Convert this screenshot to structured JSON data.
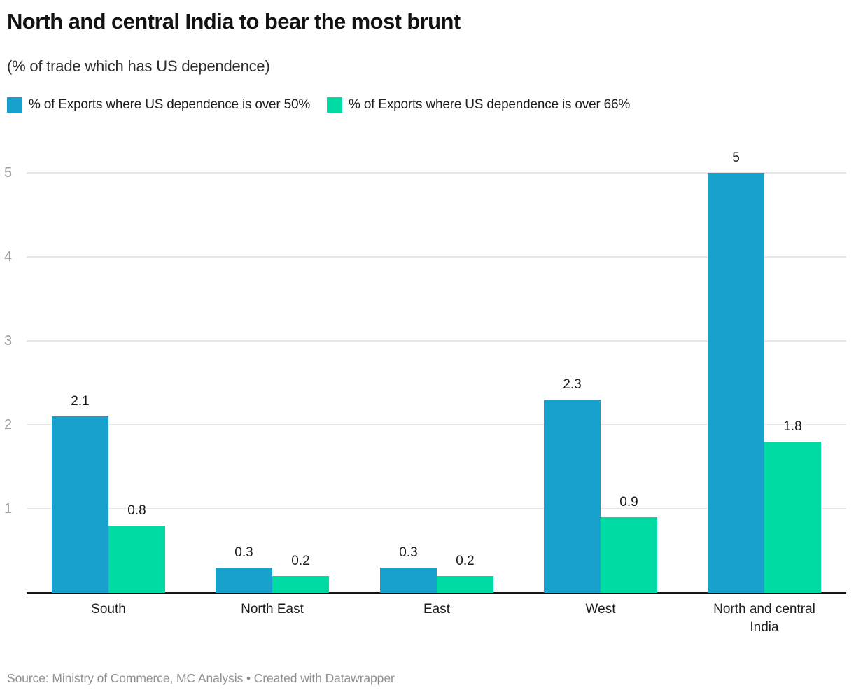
{
  "chart_data": {
    "type": "bar",
    "title": "North and central India to bear the most brunt",
    "subtitle": "(% of trade which has US dependence)",
    "categories": [
      "South",
      "North East",
      "East",
      "West",
      "North and central India"
    ],
    "series": [
      {
        "name": "% of Exports where US dependence is over 50%",
        "color": "#18a1cd",
        "values": [
          2.1,
          0.3,
          0.3,
          2.3,
          5
        ]
      },
      {
        "name": "% of Exports where US dependence is over 66%",
        "color": "#00dba4",
        "values": [
          0.8,
          0.2,
          0.2,
          0.9,
          1.8
        ]
      }
    ],
    "xlabel": "",
    "ylabel": "",
    "ylim": [
      0,
      5
    ],
    "yticks": [
      1,
      2,
      3,
      4,
      5
    ],
    "grid": true,
    "legend_position": "top",
    "value_labels": true
  },
  "footer": {
    "source": "Source: Ministry of Commerce, MC Analysis • Created with Datawrapper"
  },
  "colors": {
    "series1": "#18a1cd",
    "series2": "#00dba4",
    "gridline": "#e7e7e7",
    "axis_line": "#151515",
    "tick_label": "#9d9d9d",
    "text": "#1a1a1a",
    "source_text": "#8f8f8f"
  }
}
